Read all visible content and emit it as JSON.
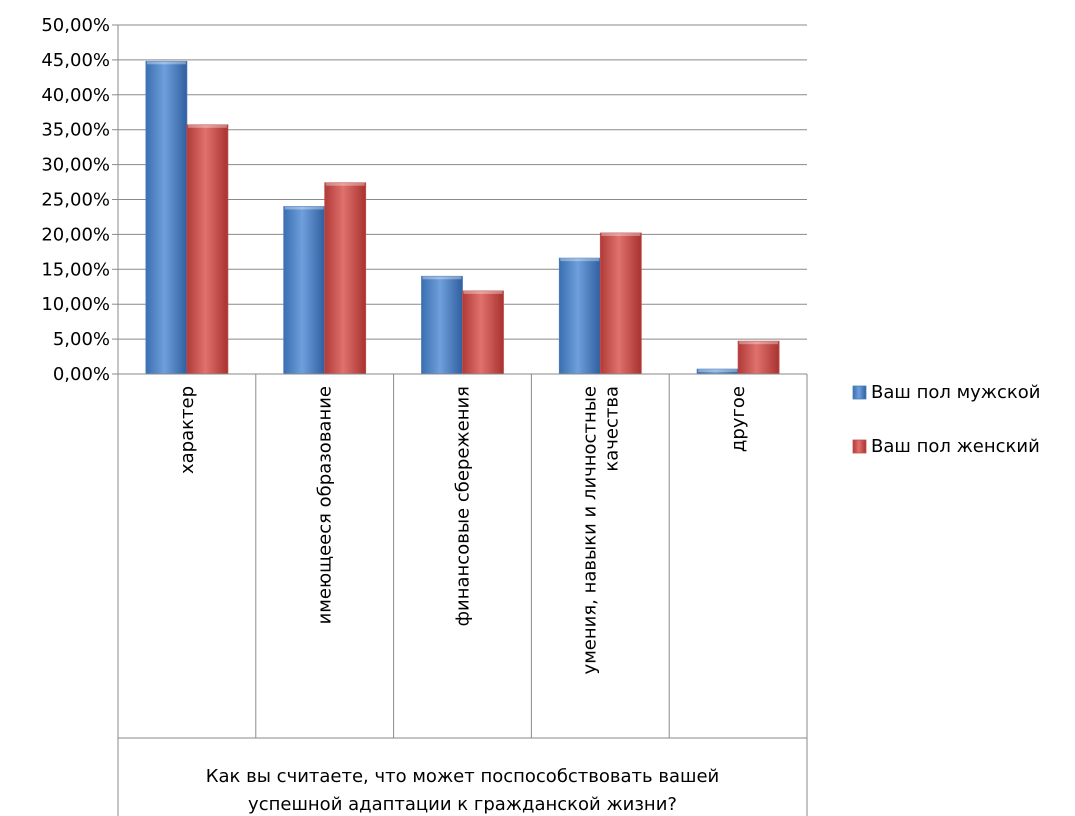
{
  "chart_data": {
    "type": "bar",
    "categories": [
      [
        "характер"
      ],
      [
        "имеющееся образование"
      ],
      [
        "финансовые сбережения"
      ],
      [
        "умения, навыки и личностные",
        "качества"
      ],
      [
        "другое"
      ]
    ],
    "series": [
      {
        "name": "Ваш пол мужской",
        "values": [
          44.8,
          24.0,
          14.0,
          16.6,
          0.7
        ],
        "color": "#4a7ebb"
      },
      {
        "name": "Ваш пол женский",
        "values": [
          35.7,
          27.4,
          11.9,
          20.2,
          4.7
        ],
        "color": "#c0504d"
      }
    ],
    "y_ticks": [
      "0,00%",
      "5,00%",
      "10,00%",
      "15,00%",
      "20,00%",
      "25,00%",
      "30,00%",
      "35,00%",
      "40,00%",
      "45,00%",
      "50,00%"
    ],
    "ylim": [
      0,
      50
    ],
    "xlabel": [
      "Как вы считаете, что может поспособствовать вашей",
      "успешной адаптации к гражданской жизни?"
    ],
    "ylabel": "",
    "grid": true,
    "legend_position": "right"
  }
}
